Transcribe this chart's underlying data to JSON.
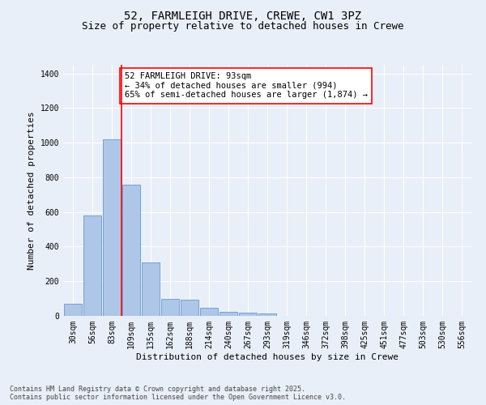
{
  "title": "52, FARMLEIGH DRIVE, CREWE, CW1 3PZ",
  "subtitle": "Size of property relative to detached houses in Crewe",
  "xlabel": "Distribution of detached houses by size in Crewe",
  "ylabel": "Number of detached properties",
  "categories": [
    "30sqm",
    "56sqm",
    "83sqm",
    "109sqm",
    "135sqm",
    "162sqm",
    "188sqm",
    "214sqm",
    "240sqm",
    "267sqm",
    "293sqm",
    "319sqm",
    "346sqm",
    "372sqm",
    "398sqm",
    "425sqm",
    "451sqm",
    "477sqm",
    "503sqm",
    "530sqm",
    "556sqm"
  ],
  "values": [
    70,
    580,
    1020,
    760,
    310,
    100,
    95,
    45,
    25,
    18,
    12,
    0,
    0,
    0,
    0,
    0,
    0,
    0,
    0,
    0,
    0
  ],
  "bar_color": "#aec6e8",
  "bar_edge_color": "#6699cc",
  "vline_color": "red",
  "vline_pos": 2.5,
  "annotation_text": "52 FARMLEIGH DRIVE: 93sqm\n← 34% of detached houses are smaller (994)\n65% of semi-detached houses are larger (1,874) →",
  "annotation_box_color": "white",
  "annotation_box_edge": "red",
  "ylim": [
    0,
    1450
  ],
  "yticks": [
    0,
    200,
    400,
    600,
    800,
    1000,
    1200,
    1400
  ],
  "bg_color": "#e8eff8",
  "plot_bg_color": "#e8eff8",
  "footnote": "Contains HM Land Registry data © Crown copyright and database right 2025.\nContains public sector information licensed under the Open Government Licence v3.0.",
  "title_fontsize": 10,
  "subtitle_fontsize": 9,
  "axis_label_fontsize": 8,
  "tick_fontsize": 7,
  "annot_fontsize": 7.5,
  "footnote_fontsize": 6
}
